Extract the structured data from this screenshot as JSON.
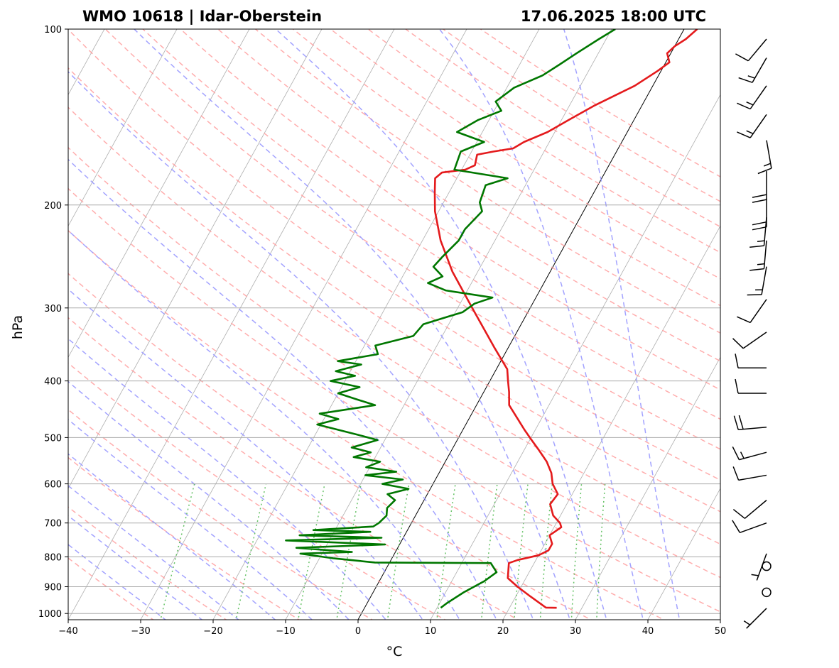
{
  "chart_data": {
    "type": "line",
    "title_left": "WMO 10618 | Idar-Oberstein",
    "title_right": "17.06.2025 18:00 UTC",
    "xlabel": "°C",
    "ylabel": "hPa",
    "xlim": [
      -40,
      50
    ],
    "ylim": [
      1025,
      100
    ],
    "y_scale": "log",
    "x_ticks": [
      -40,
      -30,
      -20,
      -10,
      0,
      10,
      20,
      30,
      40,
      50
    ],
    "x_tick_labels": [
      "−40",
      "−30",
      "−20",
      "−10",
      "0",
      "10",
      "20",
      "30",
      "40",
      "50"
    ],
    "y_ticks": [
      1000,
      900,
      800,
      700,
      600,
      500,
      400,
      300,
      200,
      100
    ],
    "y_tick_labels": [
      "1000",
      "900",
      "800",
      "700",
      "600",
      "500",
      "400",
      "300",
      "200",
      "100"
    ],
    "grid": true,
    "colors": {
      "temperature": "#e41a1c",
      "dewpoint": "#007700",
      "dry_adiabats": "#ff9999",
      "moist_adiabats": "#9999ff",
      "mixing_ratio": "#55bb55",
      "isotherms": "#999999",
      "zero_isotherm": "#000000"
    },
    "series": [
      {
        "name": "",
        "role": "temperature",
        "points": [
          [
            26.5,
            978
          ],
          [
            25.0,
            977
          ],
          [
            24.5,
            970
          ],
          [
            22.0,
            935
          ],
          [
            19.5,
            900
          ],
          [
            17.5,
            870
          ],
          [
            16.5,
            820
          ],
          [
            17.5,
            810
          ],
          [
            20.0,
            795
          ],
          [
            21.0,
            780
          ],
          [
            21.0,
            760
          ],
          [
            20.0,
            735
          ],
          [
            21.0,
            712
          ],
          [
            20.5,
            700
          ],
          [
            19.0,
            680
          ],
          [
            17.7,
            650
          ],
          [
            18.0,
            625
          ],
          [
            16.5,
            600
          ],
          [
            15.5,
            575
          ],
          [
            14.0,
            550
          ],
          [
            12.0,
            525
          ],
          [
            10.0,
            502
          ],
          [
            8.5,
            485
          ],
          [
            6.5,
            462
          ],
          [
            4.5,
            440
          ],
          [
            3.5,
            418
          ],
          [
            2.5,
            400
          ],
          [
            1.5,
            382
          ],
          [
            -2.0,
            350
          ],
          [
            -8.0,
            300
          ],
          [
            -13.5,
            260
          ],
          [
            -17.5,
            230
          ],
          [
            -20.5,
            205
          ],
          [
            -22.0,
            190
          ],
          [
            -23.0,
            180
          ],
          [
            -22.5,
            176
          ],
          [
            -19.5,
            174
          ],
          [
            -18.5,
            171
          ],
          [
            -19.0,
            164
          ],
          [
            -17.0,
            162
          ],
          [
            -14.5,
            160
          ],
          [
            -13.5,
            156
          ],
          [
            -11.0,
            150
          ],
          [
            -9.0,
            143
          ],
          [
            -6.5,
            135
          ],
          [
            -2.5,
            125
          ],
          [
            -0.5,
            118
          ],
          [
            0.5,
            114
          ],
          [
            -0.5,
            110
          ],
          [
            0.0,
            107
          ],
          [
            1.0,
            104
          ],
          [
            1.8,
            100
          ]
        ]
      },
      {
        "name": "",
        "role": "dewpoint",
        "points": [
          [
            10.5,
            978
          ],
          [
            11.0,
            960
          ],
          [
            12.5,
            920
          ],
          [
            14.5,
            880
          ],
          [
            15.5,
            850
          ],
          [
            14.0,
            820
          ],
          [
            -2.0,
            818
          ],
          [
            -8.0,
            805
          ],
          [
            -13.0,
            790
          ],
          [
            -6.0,
            785
          ],
          [
            -14.0,
            772
          ],
          [
            -2.0,
            762
          ],
          [
            -16.0,
            750
          ],
          [
            -3.0,
            742
          ],
          [
            -14.5,
            735
          ],
          [
            -5.0,
            725
          ],
          [
            -13.0,
            720
          ],
          [
            -5.0,
            710
          ],
          [
            -4.5,
            700
          ],
          [
            -4.0,
            680
          ],
          [
            -4.5,
            660
          ],
          [
            -4.0,
            640
          ],
          [
            -5.5,
            625
          ],
          [
            -3.0,
            612
          ],
          [
            -7.0,
            600
          ],
          [
            -4.5,
            590
          ],
          [
            -10.0,
            580
          ],
          [
            -6.0,
            572
          ],
          [
            -10.5,
            562
          ],
          [
            -9.0,
            550
          ],
          [
            -13.0,
            540
          ],
          [
            -11.0,
            530
          ],
          [
            -14.0,
            520
          ],
          [
            -11.0,
            505
          ],
          [
            -14.0,
            495
          ],
          [
            -20.5,
            475
          ],
          [
            -18.0,
            465
          ],
          [
            -21.0,
            455
          ],
          [
            -14.0,
            440
          ],
          [
            -17.0,
            430
          ],
          [
            -20.0,
            420
          ],
          [
            -17.5,
            410
          ],
          [
            -22.0,
            400
          ],
          [
            -19.0,
            392
          ],
          [
            -22.0,
            385
          ],
          [
            -19.0,
            375
          ],
          [
            -22.5,
            370
          ],
          [
            -17.5,
            360
          ],
          [
            -18.5,
            348
          ],
          [
            -14.0,
            335
          ],
          [
            -13.5,
            320
          ],
          [
            -9.0,
            305
          ],
          [
            -8.0,
            295
          ],
          [
            -6.0,
            288
          ],
          [
            -13.0,
            280
          ],
          [
            -16.0,
            272
          ],
          [
            -14.5,
            265
          ],
          [
            -16.5,
            255
          ],
          [
            -16.0,
            245
          ],
          [
            -15.0,
            230
          ],
          [
            -15.0,
            220
          ],
          [
            -14.0,
            205
          ],
          [
            -15.0,
            198
          ],
          [
            -15.5,
            185
          ],
          [
            -13.0,
            180
          ],
          [
            -21.0,
            174
          ],
          [
            -21.5,
            162
          ],
          [
            -19.0,
            156
          ],
          [
            -23.5,
            150
          ],
          [
            -21.5,
            143
          ],
          [
            -19.0,
            138
          ],
          [
            -20.5,
            133
          ],
          [
            -19.0,
            126
          ],
          [
            -16.0,
            120
          ],
          [
            -14.5,
            115
          ],
          [
            -13.0,
            110
          ],
          [
            -11.0,
            104
          ],
          [
            -9.5,
            100
          ]
        ]
      }
    ],
    "wind_barbs": [
      {
        "p": 980,
        "speed_kt": 5,
        "dir": 225
      },
      {
        "p": 920,
        "speed_kt": 0,
        "dir": 0
      },
      {
        "p": 830,
        "speed_kt": 0,
        "dir": 0
      },
      {
        "p": 790,
        "speed_kt": 5,
        "dir": 200
      },
      {
        "p": 700,
        "speed_kt": 10,
        "dir": 250
      },
      {
        "p": 640,
        "speed_kt": 10,
        "dir": 230
      },
      {
        "p": 580,
        "speed_kt": 10,
        "dir": 260
      },
      {
        "p": 530,
        "speed_kt": 15,
        "dir": 255
      },
      {
        "p": 480,
        "speed_kt": 20,
        "dir": 265
      },
      {
        "p": 420,
        "speed_kt": 10,
        "dir": 270
      },
      {
        "p": 380,
        "speed_kt": 10,
        "dir": 270
      },
      {
        "p": 330,
        "speed_kt": 10,
        "dir": 235
      },
      {
        "p": 290,
        "speed_kt": 10,
        "dir": 215
      },
      {
        "p": 255,
        "speed_kt": 15,
        "dir": 190
      },
      {
        "p": 230,
        "speed_kt": 15,
        "dir": 185
      },
      {
        "p": 210,
        "speed_kt": 15,
        "dir": 185
      },
      {
        "p": 195,
        "speed_kt": 20,
        "dir": 180
      },
      {
        "p": 175,
        "speed_kt": 20,
        "dir": 180
      },
      {
        "p": 155,
        "speed_kt": 15,
        "dir": 170
      },
      {
        "p": 140,
        "speed_kt": 15,
        "dir": 215
      },
      {
        "p": 125,
        "speed_kt": 15,
        "dir": 215
      },
      {
        "p": 112,
        "speed_kt": 15,
        "dir": 210
      },
      {
        "p": 104,
        "speed_kt": 10,
        "dir": 220
      }
    ]
  }
}
